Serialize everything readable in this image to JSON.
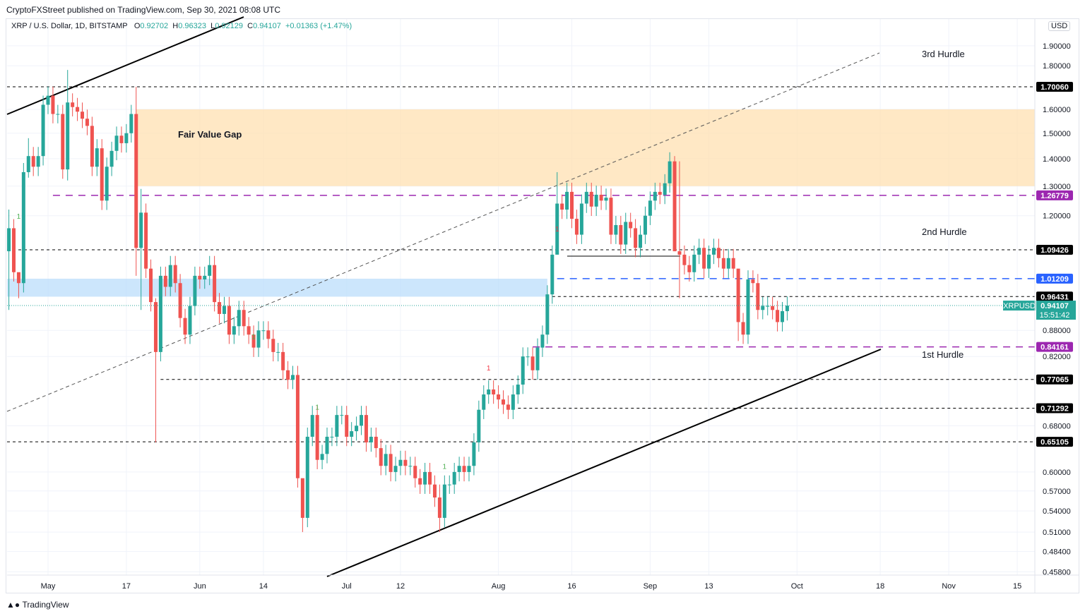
{
  "publisher_line": "CryptoFXStreet published on TradingView.com, Sep 30, 2021 08:08 UTC",
  "legend": {
    "symbol": "XRP / U.S. Dollar, 1D, BITSTAMP",
    "o_label": "O",
    "o": "0.92702",
    "h_label": "H",
    "h": "0.96323",
    "l_label": "L",
    "l": "0.92129",
    "c_label": "C",
    "c": "0.94107",
    "change": "+0.01363 (+1.47%)"
  },
  "currency_button": "USD",
  "logo_text": "TradingView",
  "chart_data": {
    "type": "candlestick",
    "scale": "log",
    "start_date": "2021-04-23",
    "closes": [
      1.16,
      1.03,
      1.0,
      1.35,
      1.41,
      1.37,
      1.41,
      1.62,
      1.66,
      1.58,
      1.58,
      1.36,
      1.63,
      1.61,
      1.59,
      1.56,
      1.53,
      1.37,
      1.44,
      1.25,
      1.37,
      1.43,
      1.49,
      1.46,
      1.5,
      1.58,
      1.1,
      1.21,
      1.04,
      0.95,
      0.83,
      1.02,
      0.99,
      1.05,
      1.0,
      0.91,
      0.87,
      0.94,
      1.02,
      1.01,
      1.02,
      1.05,
      0.95,
      0.92,
      0.94,
      0.87,
      0.89,
      0.93,
      0.89,
      0.87,
      0.84,
      0.88,
      0.88,
      0.86,
      0.83,
      0.83,
      0.79,
      0.77,
      0.78,
      0.59,
      0.53,
      0.66,
      0.7,
      0.62,
      0.63,
      0.66,
      0.66,
      0.7,
      0.7,
      0.66,
      0.67,
      0.68,
      0.7,
      0.65,
      0.66,
      0.64,
      0.61,
      0.63,
      0.6,
      0.61,
      0.62,
      0.61,
      0.61,
      0.59,
      0.58,
      0.6,
      0.58,
      0.56,
      0.53,
      0.58,
      0.58,
      0.6,
      0.61,
      0.6,
      0.61,
      0.65,
      0.71,
      0.74,
      0.75,
      0.74,
      0.73,
      0.72,
      0.71,
      0.74,
      0.76,
      0.82,
      0.82,
      0.79,
      0.84,
      0.87,
      0.97,
      1.08,
      1.24,
      1.22,
      1.28,
      1.19,
      1.14,
      1.24,
      1.28,
      1.23,
      1.27,
      1.25,
      1.26,
      1.14,
      1.17,
      1.11,
      1.18,
      1.16,
      1.1,
      1.14,
      1.2,
      1.25,
      1.28,
      1.27,
      1.31,
      1.39,
      1.09,
      1.08,
      1.05,
      1.03,
      1.08,
      1.1,
      1.04,
      1.08,
      1.1,
      1.07,
      1.04,
      1.07,
      1.04,
      0.9,
      0.87,
      1.01,
      1.0,
      0.93,
      0.94,
      0.94,
      0.93,
      0.9,
      0.927,
      0.941
    ],
    "first_open": 1.09,
    "notable_wicks": {
      "0": [
        1.22,
        0.93
      ],
      "2": [
        1.02,
        0.96
      ],
      "4": [
        1.48,
        1.33
      ],
      "12": [
        1.78,
        1.32
      ],
      "26": [
        1.7,
        1.02
      ],
      "27": [
        1.29,
        0.93
      ],
      "30": [
        0.96,
        0.65
      ],
      "60": [
        0.56,
        0.51
      ],
      "88": [
        0.58,
        0.51
      ],
      "112": [
        1.35,
        1.2
      ],
      "136": [
        1.41,
        1.28
      ],
      "137": [
        1.39,
        0.96
      ],
      "149": [
        0.98,
        0.855
      ],
      "160": [
        0.96323,
        0.92129
      ]
    },
    "y_ticks": [
      "1.90000",
      "1.80000",
      "1.60000",
      "1.50000",
      "1.40000",
      "1.30000",
      "1.20000",
      "0.88000",
      "0.82000",
      "0.68000",
      "0.60000",
      "0.57000",
      "0.54000",
      "0.51000",
      "0.48400",
      "0.45800"
    ],
    "y_tick_values": [
      1.9,
      1.8,
      1.6,
      1.5,
      1.4,
      1.3,
      1.2,
      0.88,
      0.82,
      0.68,
      0.6,
      0.57,
      0.54,
      0.51,
      0.484,
      0.458
    ],
    "x_ticks": [
      {
        "label": "May",
        "day": 8
      },
      {
        "label": "17",
        "day": 24
      },
      {
        "label": "Jun",
        "day": 39
      },
      {
        "label": "14",
        "day": 52
      },
      {
        "label": "Jul",
        "day": 69
      },
      {
        "label": "12",
        "day": 80
      },
      {
        "label": "Aug",
        "day": 100
      },
      {
        "label": "16",
        "day": 115
      },
      {
        "label": "Sep",
        "day": 131
      },
      {
        "label": "13",
        "day": 143
      },
      {
        "label": "Oct",
        "day": 161
      },
      {
        "label": "18",
        "day": 178
      },
      {
        "label": "Nov",
        "day": 192
      },
      {
        "label": "15",
        "day": 206
      }
    ],
    "levels": [
      {
        "price": 1.7006,
        "label": "1.70060",
        "color": "#000000",
        "style": "dotted",
        "from_day": -8
      },
      {
        "price": 1.26779,
        "label": "1.26779",
        "color": "#9c27b0",
        "style": "dashed",
        "from_day": 9
      },
      {
        "price": 1.09426,
        "label": "1.09426",
        "color": "#000000",
        "style": "dotted",
        "from_day": -8
      },
      {
        "price": 1.01209,
        "label": "1.01209",
        "color": "#2962ff",
        "style": "dashed",
        "from_day": 112
      },
      {
        "price": 0.96431,
        "label": "0.96431",
        "color": "#000000",
        "style": "dotted",
        "from_day": 111
      },
      {
        "price": 0.84161,
        "label": "0.84161",
        "color": "#9c27b0",
        "style": "dashed",
        "from_day": 107
      },
      {
        "price": 0.77065,
        "label": "0.77065",
        "color": "#000000",
        "style": "dotted",
        "from_day": 31
      },
      {
        "price": 0.71292,
        "label": "0.71292",
        "color": "#000000",
        "style": "dotted",
        "from_day": 104
      },
      {
        "price": 0.65105,
        "label": "0.65105",
        "color": "#000000",
        "style": "dotted",
        "from_day": -8
      }
    ],
    "current": {
      "symbol": "XRPUSD",
      "price": 0.94107,
      "price_label": "0.94107",
      "countdown": "15:51:42",
      "color": "#26a69a"
    },
    "zones": [
      {
        "name": "Fair Value Gap",
        "top": 1.6,
        "bottom": 1.3,
        "from_day": 26,
        "color": "#ffe0b2"
      },
      {
        "name": "",
        "top": 1.012,
        "bottom": 0.964,
        "from_day": -8,
        "to_day": 110,
        "color": "#bbdefb"
      }
    ],
    "annotations": [
      {
        "text": "3rd Hurdle",
        "price": 1.86
      },
      {
        "text": "2nd Hurdle",
        "price": 1.15
      },
      {
        "text": "1st Hurdle",
        "price": 0.825
      }
    ],
    "markers": [
      {
        "text": "1",
        "day": 2,
        "price": 1.19,
        "color": "#4caf50"
      },
      {
        "text": "1",
        "day": 50,
        "price": 0.86,
        "color": "#4caf50"
      },
      {
        "text": "1",
        "day": 63,
        "price": 0.71,
        "color": "#4caf50"
      },
      {
        "text": "1",
        "day": 89,
        "price": 0.605,
        "color": "#4caf50"
      },
      {
        "text": "1",
        "day": 98,
        "price": 0.79,
        "color": "#f23645"
      },
      {
        "text": "1",
        "day": 112,
        "price": 1.15,
        "color": "#f23645"
      }
    ],
    "up_color": "#26a69a",
    "down_color": "#ef5350"
  }
}
